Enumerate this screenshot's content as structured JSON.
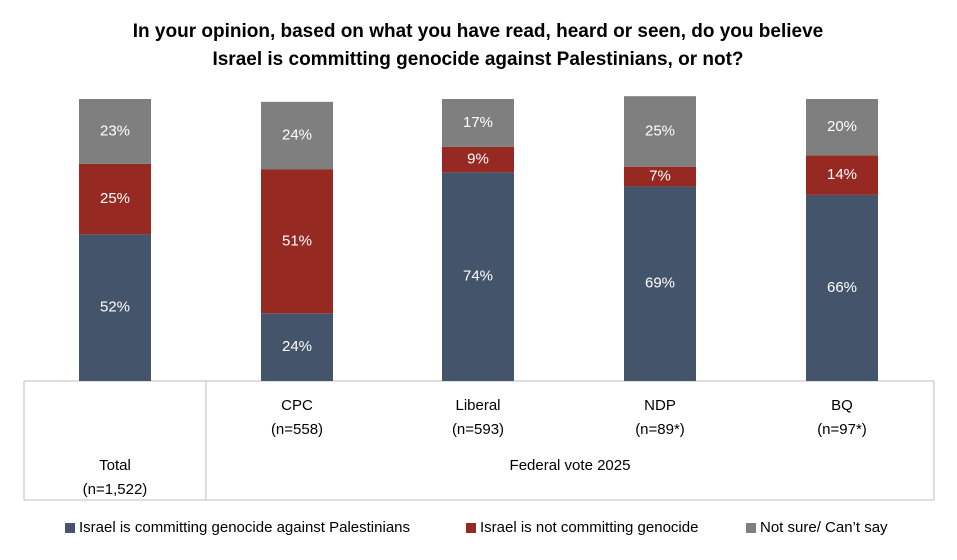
{
  "chart_data": {
    "type": "stacked_bar",
    "title": [
      "In your opinion, based on what you have read, heard or seen, do you believe",
      "Israel is committing genocide against Palestinians, or not?"
    ],
    "categories": [
      "Total",
      "CPC",
      "Liberal",
      "NDP",
      "BQ"
    ],
    "category_samples": [
      "(n=1,522)",
      "(n=558)",
      "(n=593)",
      "(n=89*)",
      "(n=97*)"
    ],
    "group_label": "Federal vote 2025",
    "ylim": [
      0,
      100
    ],
    "series": [
      {
        "name": "Israel is committing genocide against Palestinians",
        "color": "#44546a",
        "values": [
          52,
          24,
          74,
          69,
          66
        ],
        "value_labels": [
          "52%",
          "24%",
          "74%",
          "69%",
          "66%"
        ]
      },
      {
        "name": "Israel is not committing genocide",
        "color": "#962a22",
        "values": [
          25,
          51,
          9,
          7,
          14
        ],
        "value_labels": [
          "25%",
          "51%",
          "9%",
          "7%",
          "14%"
        ]
      },
      {
        "name": "Not sure/ Can’t say",
        "color": "#7f7f7f",
        "values": [
          23,
          24,
          17,
          25,
          20
        ],
        "value_labels": [
          "23%",
          "24%",
          "17%",
          "25%",
          "20%"
        ]
      }
    ]
  }
}
